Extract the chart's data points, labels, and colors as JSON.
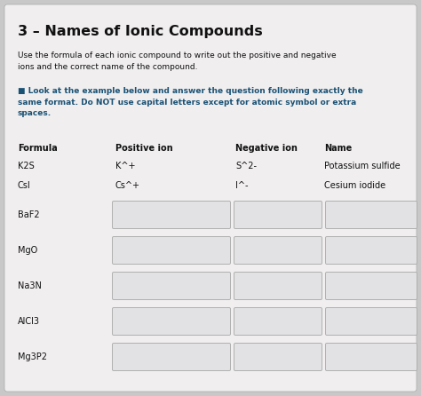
{
  "title": "3 – Names of Ionic Compounds",
  "subtitle": "Use the formula of each ionic compound to write out the positive and negative\nions and the correct name of the compound.",
  "instruction": "■ Look at the example below and answer the question following exactly the\nsame format. Do NOT use capital letters except for atomic symbol or extra\nspaces.",
  "col_headers": [
    "Formula",
    "Positive ion",
    "Negative ion",
    "Name"
  ],
  "example_rows": [
    [
      "K2S",
      "K^+",
      "S^2-",
      "Potassium sulfide"
    ],
    [
      "CsI",
      "Cs^+",
      "I^-",
      "Cesium iodide"
    ]
  ],
  "blank_rows": [
    "BaF2",
    "MgO",
    "Na3N",
    "AlCl3",
    "Mg3P2"
  ],
  "bg_color": "#c8c8c8",
  "card_color": "#f0eeee",
  "title_color": "#111111",
  "subtitle_color": "#111111",
  "instruction_color": "#1a5276",
  "header_color": "#111111",
  "example_text_color": "#111111",
  "box_color": "#e2e2e4",
  "box_edge_color": "#b0b0b0"
}
